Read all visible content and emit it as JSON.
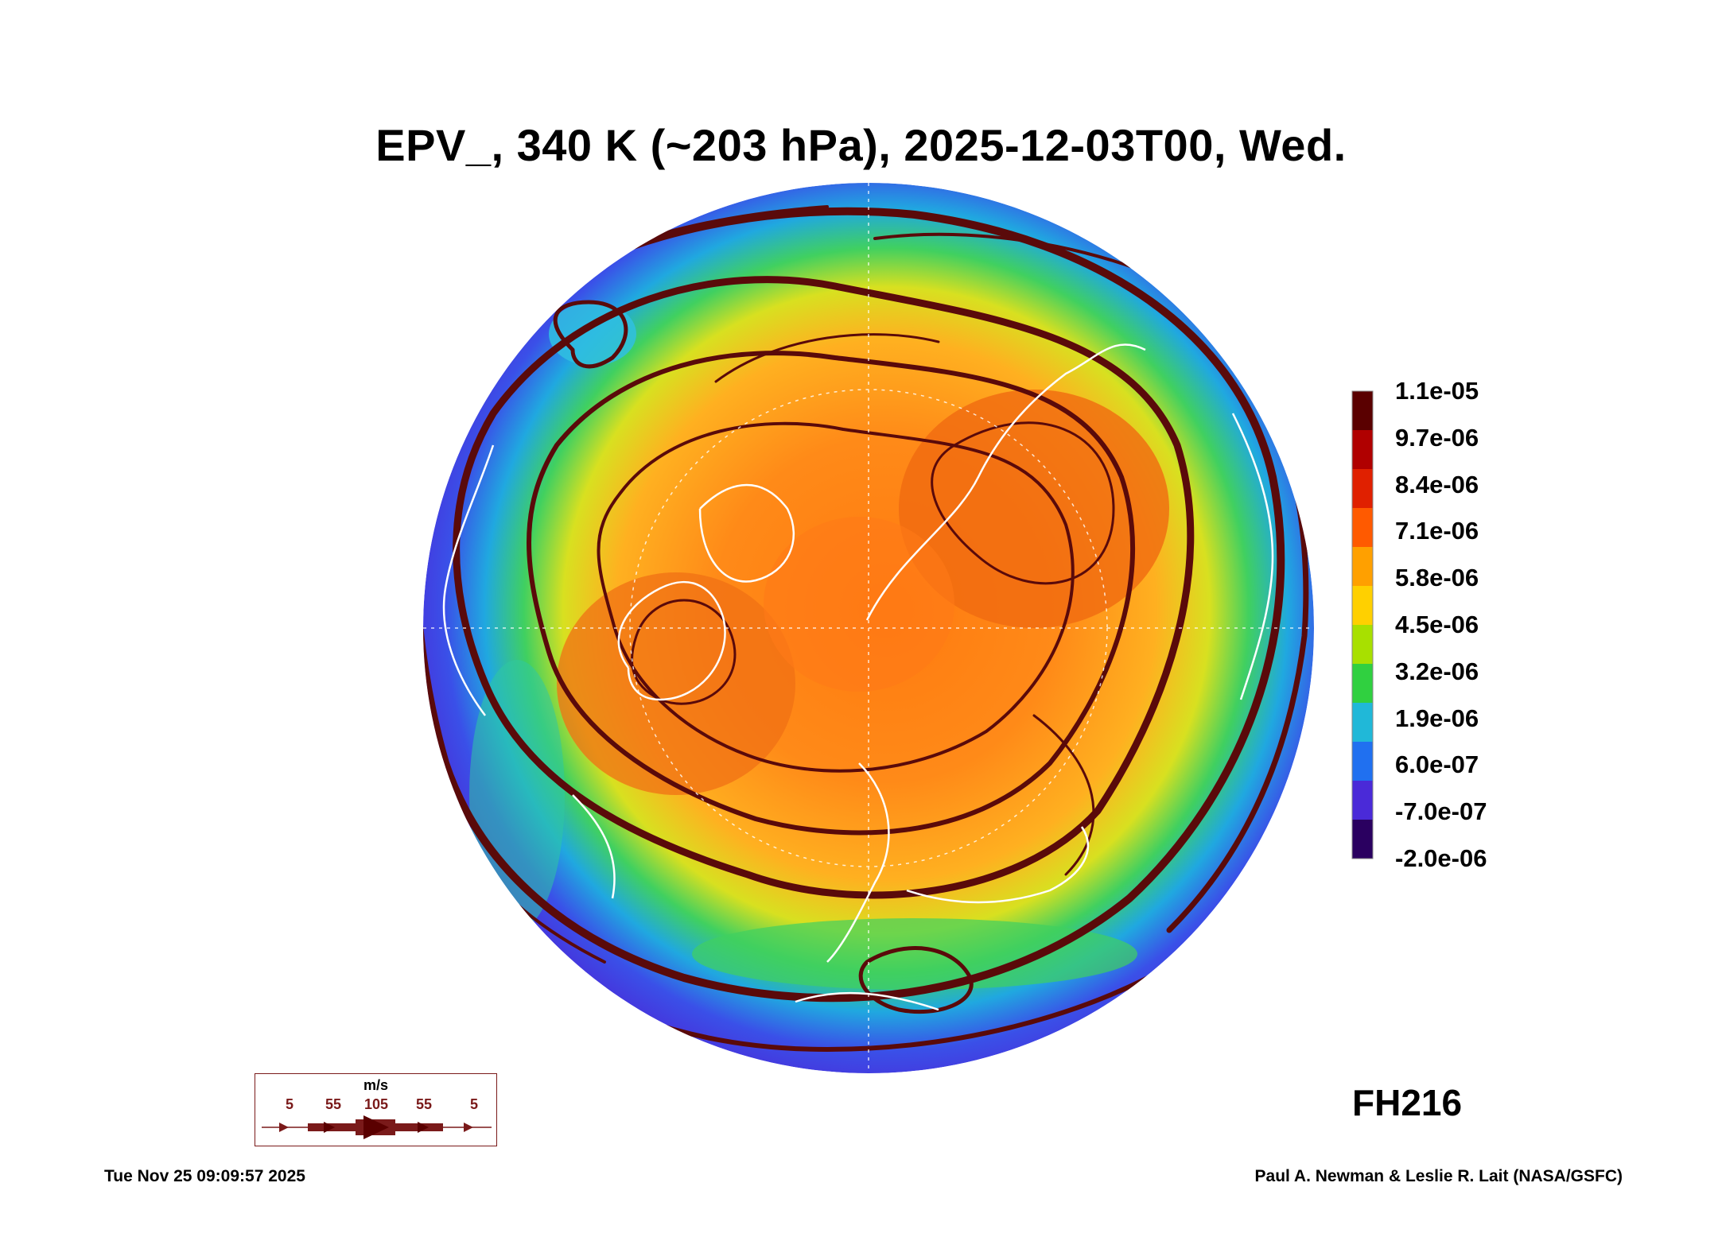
{
  "title": "EPV_, 340 K (~203 hPa), 2025-12-03T00, Wed.",
  "colorbar": {
    "labels": [
      "1.1e-05",
      "9.7e-06",
      "8.4e-06",
      "7.1e-06",
      "5.8e-06",
      "4.5e-06",
      "3.2e-06",
      "1.9e-06",
      "6.0e-07",
      "-7.0e-07",
      "-2.0e-06"
    ],
    "colors": [
      "#5a0000",
      "#b00000",
      "#e02000",
      "#ff5a00",
      "#ffa000",
      "#ffd000",
      "#a8e000",
      "#30d040",
      "#20b8d8",
      "#2070f0",
      "#4a2ad8",
      "#2a0060"
    ]
  },
  "forecast_hour": "FH216",
  "timestamp": "Tue Nov 25 09:09:57 2025",
  "credit": "Paul A. Newman & Leslie R. Lait (NASA/GSFC)",
  "wind_legend": {
    "unit": "m/s",
    "values": [
      "5",
      "55",
      "105",
      "55",
      "5"
    ]
  },
  "colors": {
    "streamline": "#5a0a0a",
    "coastline": "#ffffff",
    "outer_ring": "#4a2ad8"
  }
}
